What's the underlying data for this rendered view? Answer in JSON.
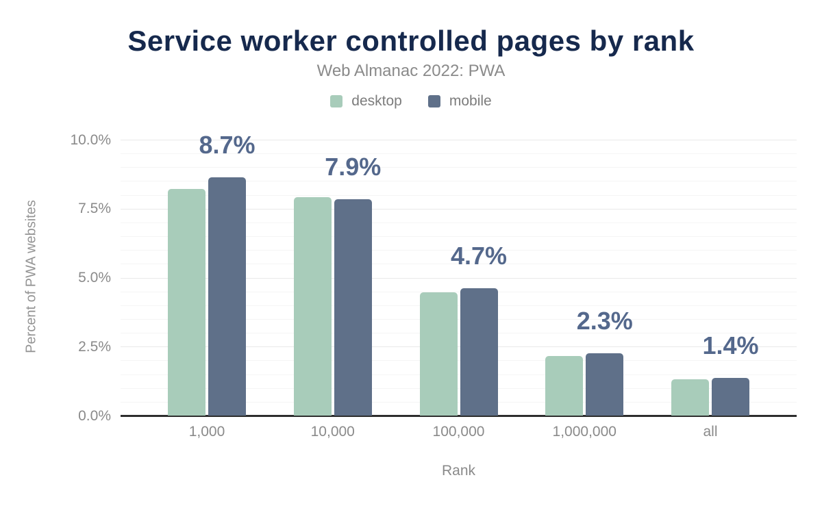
{
  "chart_data": {
    "type": "bar",
    "title": "Service worker controlled pages by rank",
    "subtitle": "Web Almanac 2022: PWA",
    "xlabel": "Rank",
    "ylabel": "Percent of PWA websites",
    "categories": [
      "1,000",
      "10,000",
      "100,000",
      "1,000,000",
      "all"
    ],
    "series": [
      {
        "name": "desktop",
        "color": "#a8ccba",
        "values": [
          8.22,
          7.94,
          4.48,
          2.17,
          1.33
        ]
      },
      {
        "name": "mobile",
        "color": "#5f7089",
        "values": [
          8.65,
          7.86,
          4.64,
          2.26,
          1.38
        ]
      }
    ],
    "data_labels": {
      "on_series": "mobile",
      "labels": [
        "8.7%",
        "7.9%",
        "4.7%",
        "2.3%",
        "1.4%"
      ],
      "color": "#54688c"
    },
    "ylim": [
      0,
      10
    ],
    "yticks": [
      {
        "value": 0,
        "label": "0.0%"
      },
      {
        "value": 2.5,
        "label": "2.5%"
      },
      {
        "value": 5,
        "label": "5.0%"
      },
      {
        "value": 7.5,
        "label": "7.5%"
      },
      {
        "value": 10,
        "label": "10.0%"
      }
    ],
    "grid": {
      "minor_step": 0.5,
      "major_step": 2.5,
      "minor_color": "#f5f5f5",
      "major_color": "#e9e9e9"
    },
    "legend_position": "top"
  },
  "colors": {
    "title": "#16294d",
    "subtitle": "#8a8a8a",
    "axis_text": "#8a8a8a",
    "axis_title": "#949494",
    "legend_text": "#7c7c7c",
    "baseline": "#2d2d2d",
    "background": "#ffffff"
  }
}
